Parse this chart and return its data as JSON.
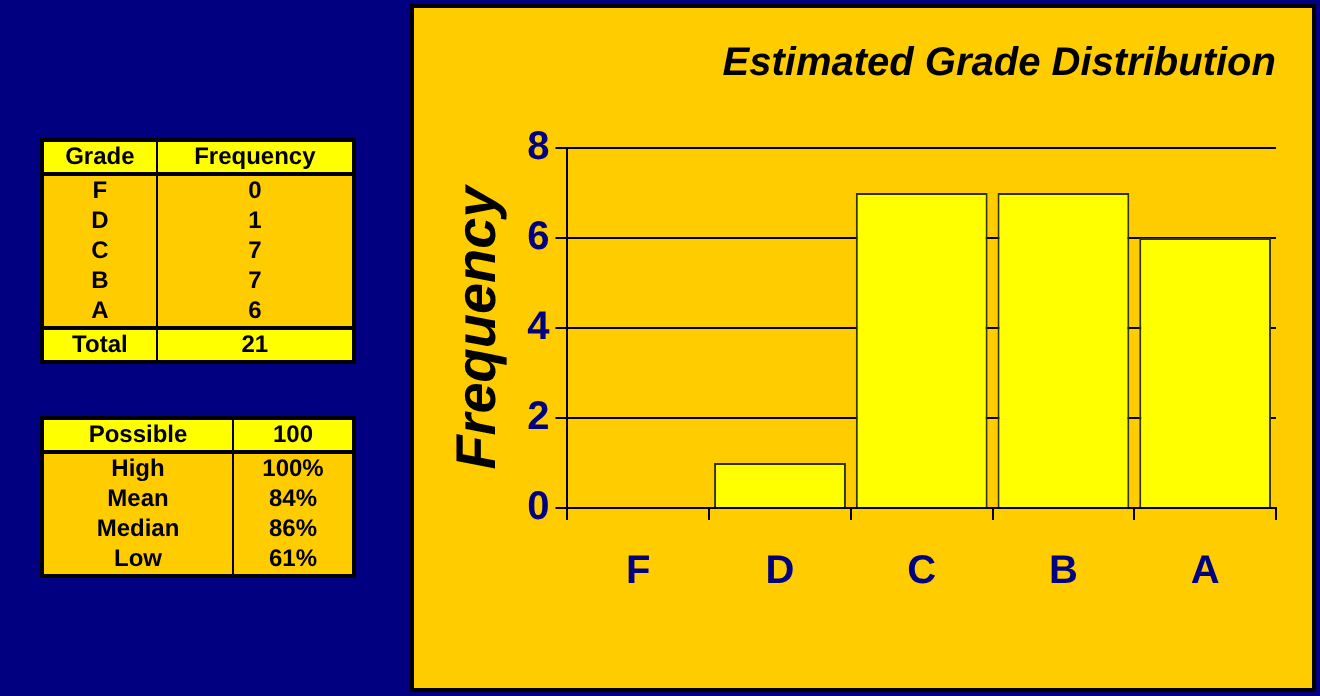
{
  "chart_data": {
    "type": "bar",
    "title": "Estimated Grade Distribution",
    "ylabel": "Frequency",
    "categories": [
      "F",
      "D",
      "C",
      "B",
      "A"
    ],
    "values": [
      0,
      1,
      7,
      7,
      6
    ],
    "color": "#ffff00",
    "ylim": [
      0,
      8
    ],
    "yticks": [
      0,
      2,
      4,
      6,
      8
    ],
    "grid": "y",
    "annotations": [
      "Grade",
      "0",
      "1",
      "7",
      "7",
      "6",
      "Total",
      "21",
      "Possible",
      "100",
      "High",
      "100%",
      "Mean",
      "84%",
      "Median",
      "86%",
      "Low",
      "61%"
    ]
  }
}
